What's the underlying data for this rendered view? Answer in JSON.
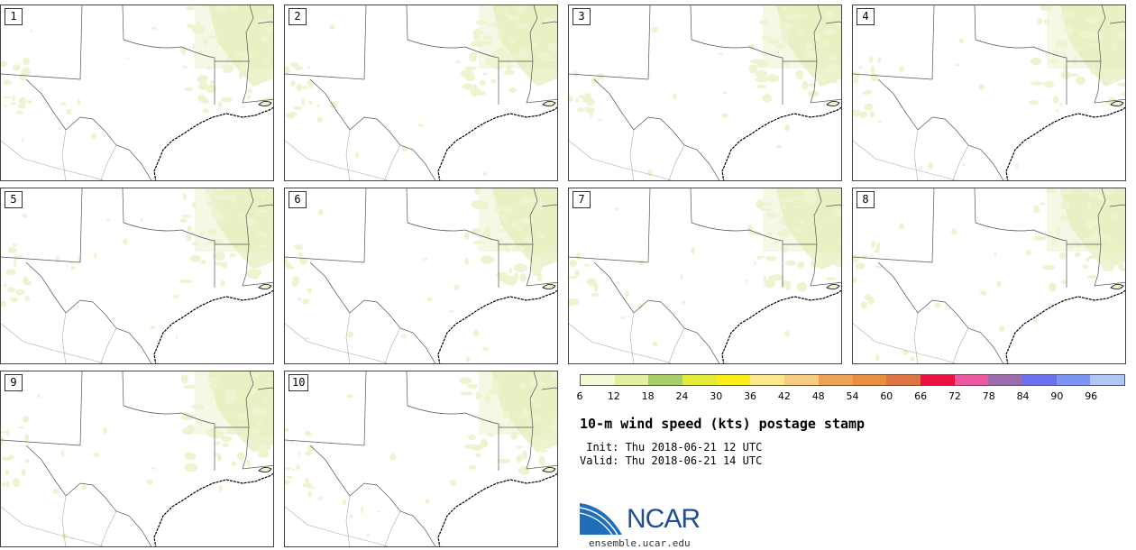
{
  "panels": [
    {
      "label": "1"
    },
    {
      "label": "2"
    },
    {
      "label": "3"
    },
    {
      "label": "4"
    },
    {
      "label": "5"
    },
    {
      "label": "6"
    },
    {
      "label": "7"
    },
    {
      "label": "8"
    },
    {
      "label": "9"
    },
    {
      "label": "10"
    }
  ],
  "colorbar": {
    "colors": [
      "#f4f8d6",
      "#e0efa0",
      "#a8cf6a",
      "#e4ec3a",
      "#fcee18",
      "#fce88c",
      "#f8cc80",
      "#eca454",
      "#e89040",
      "#dc7444",
      "#ec1040",
      "#ec58a0",
      "#9c6cac",
      "#6c70ec",
      "#7c94f4",
      "#b0c8f8"
    ],
    "tick_labels": [
      "6",
      "12",
      "18",
      "24",
      "30",
      "36",
      "42",
      "48",
      "54",
      "60",
      "66",
      "72",
      "78",
      "84",
      "90",
      "96"
    ]
  },
  "title": "10-m wind speed (kts) postage stamp",
  "init_text": " Init: Thu 2018-06-21 12 UTC",
  "valid_text": "Valid: Thu 2018-06-21 14 UTC",
  "logo": {
    "text": "NCAR",
    "url": "ensemble.ucar.edu",
    "color": "#1f4e96"
  },
  "map_colors": {
    "fill": "#eef3d0",
    "fill_dark": "#e2ecb6",
    "border": "#555555",
    "coast": "#000000"
  }
}
